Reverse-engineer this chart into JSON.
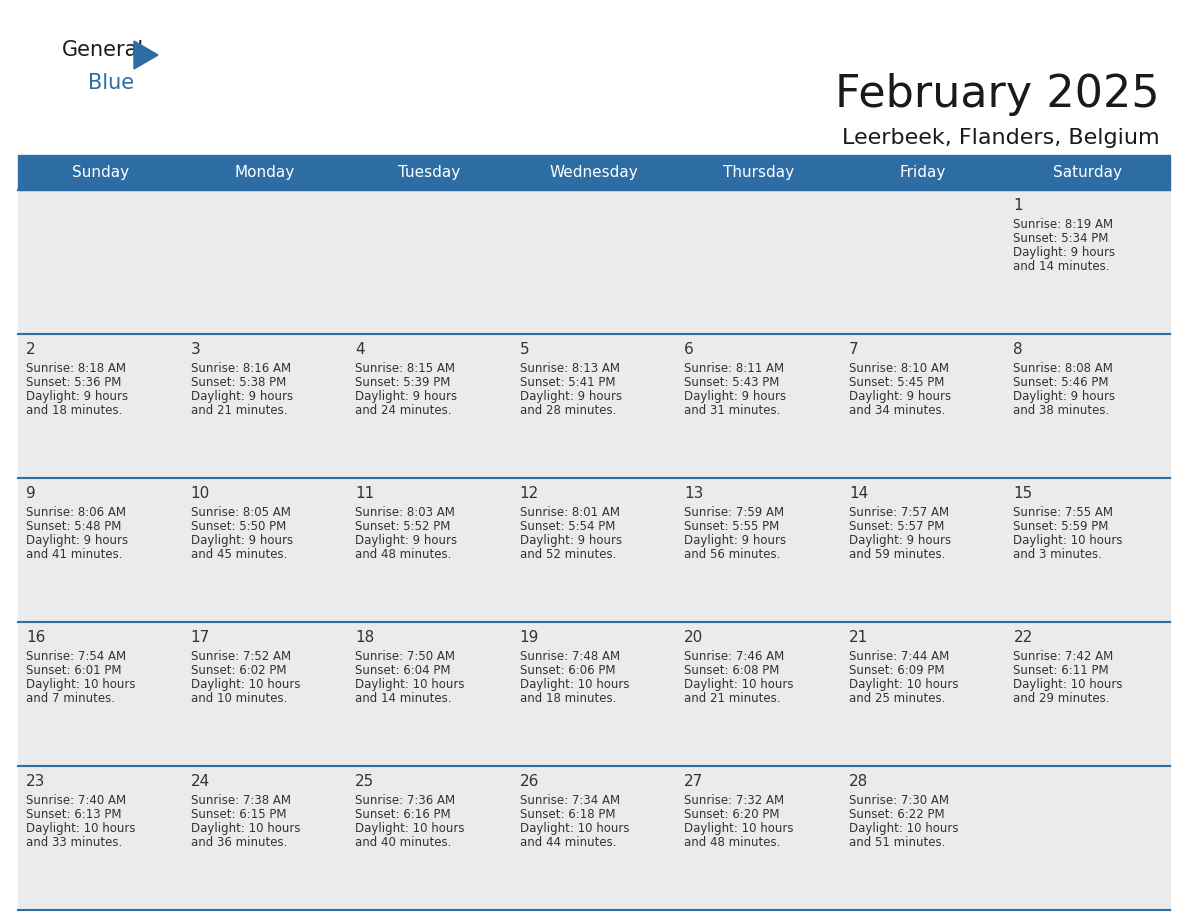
{
  "title": "February 2025",
  "subtitle": "Leerbeek, Flanders, Belgium",
  "header_bg": "#2E6DA4",
  "header_text_color": "#FFFFFF",
  "cell_bg": "#EBEBEB",
  "border_color": "#2E6DA4",
  "day_number_color": "#333333",
  "cell_text_color": "#333333",
  "days_of_week": [
    "Sunday",
    "Monday",
    "Tuesday",
    "Wednesday",
    "Thursday",
    "Friday",
    "Saturday"
  ],
  "weeks": [
    [
      {
        "day": null,
        "sunrise": null,
        "sunset": null,
        "daylight": null
      },
      {
        "day": null,
        "sunrise": null,
        "sunset": null,
        "daylight": null
      },
      {
        "day": null,
        "sunrise": null,
        "sunset": null,
        "daylight": null
      },
      {
        "day": null,
        "sunrise": null,
        "sunset": null,
        "daylight": null
      },
      {
        "day": null,
        "sunrise": null,
        "sunset": null,
        "daylight": null
      },
      {
        "day": null,
        "sunrise": null,
        "sunset": null,
        "daylight": null
      },
      {
        "day": 1,
        "sunrise": "8:19 AM",
        "sunset": "5:34 PM",
        "daylight": "9 hours\nand 14 minutes."
      }
    ],
    [
      {
        "day": 2,
        "sunrise": "8:18 AM",
        "sunset": "5:36 PM",
        "daylight": "9 hours\nand 18 minutes."
      },
      {
        "day": 3,
        "sunrise": "8:16 AM",
        "sunset": "5:38 PM",
        "daylight": "9 hours\nand 21 minutes."
      },
      {
        "day": 4,
        "sunrise": "8:15 AM",
        "sunset": "5:39 PM",
        "daylight": "9 hours\nand 24 minutes."
      },
      {
        "day": 5,
        "sunrise": "8:13 AM",
        "sunset": "5:41 PM",
        "daylight": "9 hours\nand 28 minutes."
      },
      {
        "day": 6,
        "sunrise": "8:11 AM",
        "sunset": "5:43 PM",
        "daylight": "9 hours\nand 31 minutes."
      },
      {
        "day": 7,
        "sunrise": "8:10 AM",
        "sunset": "5:45 PM",
        "daylight": "9 hours\nand 34 minutes."
      },
      {
        "day": 8,
        "sunrise": "8:08 AM",
        "sunset": "5:46 PM",
        "daylight": "9 hours\nand 38 minutes."
      }
    ],
    [
      {
        "day": 9,
        "sunrise": "8:06 AM",
        "sunset": "5:48 PM",
        "daylight": "9 hours\nand 41 minutes."
      },
      {
        "day": 10,
        "sunrise": "8:05 AM",
        "sunset": "5:50 PM",
        "daylight": "9 hours\nand 45 minutes."
      },
      {
        "day": 11,
        "sunrise": "8:03 AM",
        "sunset": "5:52 PM",
        "daylight": "9 hours\nand 48 minutes."
      },
      {
        "day": 12,
        "sunrise": "8:01 AM",
        "sunset": "5:54 PM",
        "daylight": "9 hours\nand 52 minutes."
      },
      {
        "day": 13,
        "sunrise": "7:59 AM",
        "sunset": "5:55 PM",
        "daylight": "9 hours\nand 56 minutes."
      },
      {
        "day": 14,
        "sunrise": "7:57 AM",
        "sunset": "5:57 PM",
        "daylight": "9 hours\nand 59 minutes."
      },
      {
        "day": 15,
        "sunrise": "7:55 AM",
        "sunset": "5:59 PM",
        "daylight": "10 hours\nand 3 minutes."
      }
    ],
    [
      {
        "day": 16,
        "sunrise": "7:54 AM",
        "sunset": "6:01 PM",
        "daylight": "10 hours\nand 7 minutes."
      },
      {
        "day": 17,
        "sunrise": "7:52 AM",
        "sunset": "6:02 PM",
        "daylight": "10 hours\nand 10 minutes."
      },
      {
        "day": 18,
        "sunrise": "7:50 AM",
        "sunset": "6:04 PM",
        "daylight": "10 hours\nand 14 minutes."
      },
      {
        "day": 19,
        "sunrise": "7:48 AM",
        "sunset": "6:06 PM",
        "daylight": "10 hours\nand 18 minutes."
      },
      {
        "day": 20,
        "sunrise": "7:46 AM",
        "sunset": "6:08 PM",
        "daylight": "10 hours\nand 21 minutes."
      },
      {
        "day": 21,
        "sunrise": "7:44 AM",
        "sunset": "6:09 PM",
        "daylight": "10 hours\nand 25 minutes."
      },
      {
        "day": 22,
        "sunrise": "7:42 AM",
        "sunset": "6:11 PM",
        "daylight": "10 hours\nand 29 minutes."
      }
    ],
    [
      {
        "day": 23,
        "sunrise": "7:40 AM",
        "sunset": "6:13 PM",
        "daylight": "10 hours\nand 33 minutes."
      },
      {
        "day": 24,
        "sunrise": "7:38 AM",
        "sunset": "6:15 PM",
        "daylight": "10 hours\nand 36 minutes."
      },
      {
        "day": 25,
        "sunrise": "7:36 AM",
        "sunset": "6:16 PM",
        "daylight": "10 hours\nand 40 minutes."
      },
      {
        "day": 26,
        "sunrise": "7:34 AM",
        "sunset": "6:18 PM",
        "daylight": "10 hours\nand 44 minutes."
      },
      {
        "day": 27,
        "sunrise": "7:32 AM",
        "sunset": "6:20 PM",
        "daylight": "10 hours\nand 48 minutes."
      },
      {
        "day": 28,
        "sunrise": "7:30 AM",
        "sunset": "6:22 PM",
        "daylight": "10 hours\nand 51 minutes."
      },
      {
        "day": null,
        "sunrise": null,
        "sunset": null,
        "daylight": null
      }
    ]
  ],
  "title_fontsize": 32,
  "subtitle_fontsize": 16,
  "header_fontsize": 11,
  "day_num_fontsize": 11,
  "cell_fontsize": 8.5
}
